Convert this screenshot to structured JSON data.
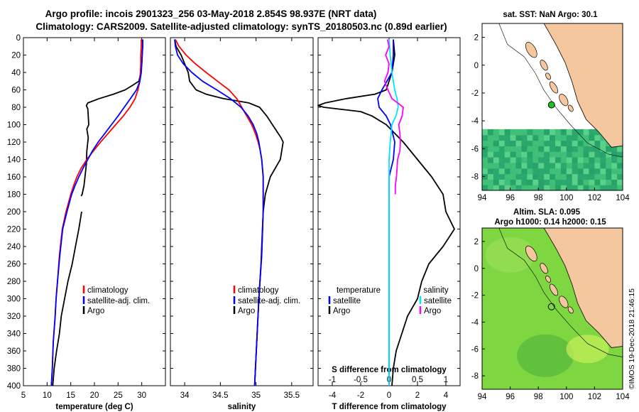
{
  "header": {
    "title_line1": "Argo profile: incois 2901323_256 03-May-2018 2.854S 98.937E (NRT data)",
    "title_line2": "Climatology: CARS2009. Satellite-adjusted climatology: synTS_20180503.nc (0.89d earlier)"
  },
  "colors": {
    "climatology": "#ff0000",
    "satellite": "#0000ff",
    "argo": "#000000",
    "sal_diff_sat": "#00e5ff",
    "sal_diff_argo": "#ff00ff",
    "land": "#f5c79e",
    "ocean_sst": "#2fb868",
    "ocean_sla": "#7ed640"
  },
  "chart_data": [
    {
      "type": "line",
      "title": "",
      "xlabel": "temperature (deg C)",
      "ylabel": "",
      "xlim": [
        5,
        35
      ],
      "ylim": [
        400,
        0
      ],
      "xticks": [
        "5",
        "10",
        "15",
        "20",
        "25",
        "30"
      ],
      "yticks": [
        "0",
        "20",
        "40",
        "60",
        "80",
        "100",
        "120",
        "140",
        "160",
        "180",
        "200",
        "220",
        "240",
        "260",
        "280",
        "300",
        "320",
        "340",
        "360",
        "380",
        "400"
      ],
      "legend": [
        "climatology",
        "satellite-adj. clim.",
        "Argo"
      ],
      "series": [
        {
          "name": "climatology",
          "depth": [
            2,
            10,
            20,
            30,
            40,
            50,
            60,
            70,
            80,
            90,
            100,
            110,
            120,
            130,
            140,
            150,
            160,
            170,
            180,
            200,
            220,
            250,
            280,
            300,
            320,
            350,
            380,
            400
          ],
          "values": [
            29.9,
            29.9,
            29.8,
            29.8,
            29.7,
            29.6,
            29.2,
            28.6,
            27.5,
            26.1,
            24.5,
            22.9,
            21.3,
            19.8,
            18.4,
            17.2,
            16.3,
            15.6,
            15.0,
            14.0,
            13.2,
            12.6,
            12.2,
            11.9,
            11.7,
            11.3,
            11.1,
            10.9
          ]
        },
        {
          "name": "satellite-adj. clim.",
          "depth": [
            2,
            10,
            20,
            30,
            40,
            50,
            60,
            70,
            80,
            90,
            100,
            110,
            120,
            130,
            140,
            150,
            160,
            170,
            180,
            200,
            220,
            250,
            280,
            300,
            320,
            350,
            380,
            400
          ],
          "values": [
            30.2,
            30.2,
            30.1,
            30.0,
            29.9,
            29.6,
            28.9,
            27.6,
            26.3,
            25.0,
            23.6,
            22.2,
            20.8,
            19.6,
            18.6,
            17.6,
            16.7,
            15.9,
            15.2,
            14.2,
            13.3,
            12.7,
            12.2,
            11.9,
            11.7,
            11.3,
            11.1,
            10.9
          ]
        },
        {
          "name": "Argo",
          "depth": [
            2,
            10,
            20,
            30,
            40,
            50,
            55,
            60,
            65,
            70,
            75,
            78,
            82,
            90,
            100,
            105,
            115,
            130,
            145,
            160,
            170,
            180,
            182
          ],
          "values": [
            30.2,
            30.2,
            30.1,
            30.0,
            29.8,
            29.4,
            28.0,
            26.5,
            24.0,
            21.0,
            18.6,
            18.3,
            18.6,
            18.7,
            18.8,
            18.4,
            18.7,
            18.4,
            18.3,
            18.0,
            17.8,
            17.4,
            17.2
          ]
        },
        {
          "name": "Argo-deep",
          "depth": [
            200,
            210,
            220,
            240,
            260,
            280,
            300,
            320,
            340,
            360,
            380,
            400
          ],
          "values": [
            17.3,
            17.0,
            16.7,
            16.0,
            15.3,
            14.4,
            13.7,
            13.0,
            12.6,
            12.0,
            11.5,
            11.2
          ]
        }
      ]
    },
    {
      "type": "line",
      "title": "",
      "xlabel": "salinity",
      "ylabel": "",
      "xlim": [
        33.8,
        35.8
      ],
      "ylim": [
        400,
        0
      ],
      "xticks": [
        "34",
        "34.5",
        "35",
        "35.5"
      ],
      "legend": [
        "climatology",
        "satellite-adj. clim.",
        "Argo"
      ],
      "series": [
        {
          "name": "climatology",
          "depth": [
            2,
            10,
            20,
            30,
            40,
            50,
            60,
            70,
            80,
            90,
            100,
            110,
            120,
            130,
            140,
            160,
            180,
            200,
            250,
            300,
            350,
            400
          ],
          "values": [
            33.87,
            33.92,
            34.02,
            34.15,
            34.3,
            34.46,
            34.62,
            34.73,
            34.8,
            34.87,
            34.94,
            34.99,
            35.03,
            35.06,
            35.08,
            35.1,
            35.1,
            35.1,
            35.08,
            35.04,
            35.01,
            34.98
          ]
        },
        {
          "name": "satellite-adj. clim.",
          "depth": [
            2,
            10,
            20,
            30,
            40,
            50,
            60,
            70,
            80,
            90,
            100,
            110,
            120,
            130,
            140,
            160,
            180,
            200,
            250,
            300,
            350,
            400
          ],
          "values": [
            33.86,
            33.87,
            33.9,
            33.98,
            34.1,
            34.25,
            34.45,
            34.64,
            34.79,
            34.89,
            34.96,
            35.01,
            35.04,
            35.06,
            35.08,
            35.1,
            35.1,
            35.1,
            35.08,
            35.04,
            35.01,
            34.98
          ]
        },
        {
          "name": "Argo",
          "depth": [
            2,
            10,
            20,
            30,
            40,
            50,
            60,
            65,
            70,
            75,
            80,
            90,
            100,
            110,
            115,
            120,
            140,
            160,
            180,
            200,
            220,
            260,
            300,
            350,
            400
          ],
          "values": [
            33.86,
            33.88,
            33.95,
            34.0,
            34.05,
            34.07,
            34.16,
            34.3,
            34.54,
            34.9,
            35.05,
            35.15,
            35.23,
            35.31,
            35.35,
            35.38,
            35.34,
            35.2,
            35.13,
            35.1,
            35.09,
            35.07,
            35.04,
            35.01,
            34.98
          ]
        }
      ]
    },
    {
      "type": "line",
      "title": "",
      "xlabel": "T difference from climatology",
      "xlabel2": "S difference from climatology",
      "xlim": [
        -5,
        5
      ],
      "ylim": [
        400,
        0
      ],
      "xticks": [
        "-4",
        "-2",
        "0",
        "2",
        "4"
      ],
      "xticks_top": [
        "-1",
        "-0.5",
        "0",
        "0.5",
        "1"
      ],
      "legend_left_title": "temperature",
      "legend_right_title": "salinity",
      "legend_left": [
        "satellite",
        "Argo"
      ],
      "legend_right": [
        "satellite",
        "Argo"
      ],
      "series": [
        {
          "name": "T satellite",
          "depth": [
            2,
            20,
            40,
            60,
            70,
            80,
            90,
            100,
            120,
            140,
            160,
            200,
            250,
            300,
            350,
            400
          ],
          "values": [
            0.3,
            0.3,
            0.2,
            -0.5,
            -0.8,
            -0.7,
            -0.2,
            0.1,
            0.4,
            0.3,
            0.0,
            0.0,
            0.0,
            0.0,
            0.0,
            0.0
          ]
        },
        {
          "name": "T Argo",
          "depth": [
            2,
            20,
            40,
            60,
            65,
            70,
            75,
            78,
            80,
            85,
            90,
            100,
            120,
            140,
            160,
            180,
            200,
            220,
            240,
            260,
            280,
            300,
            320,
            340,
            360,
            380,
            400
          ],
          "values": [
            0.3,
            0.4,
            0.2,
            -0.2,
            -1.0,
            -3.0,
            -4.5,
            -5.0,
            -4.6,
            -2.0,
            -1.2,
            -0.2,
            1.0,
            2.0,
            3.0,
            3.8,
            4.0,
            4.6,
            3.8,
            2.8,
            2.3,
            2.0,
            1.3,
            0.9,
            0.5,
            0.3,
            0.2
          ]
        },
        {
          "name": "S satellite",
          "depth": [
            2,
            20,
            40,
            60,
            70,
            80,
            90,
            100,
            120,
            140,
            160,
            200,
            250,
            300,
            350,
            400
          ],
          "values": [
            0.0,
            0.02,
            0.05,
            0.1,
            0.14,
            0.16,
            0.12,
            0.05,
            0.02,
            0.0,
            0.0,
            0.0,
            0.0,
            0.0,
            0.0,
            0.0
          ]
        },
        {
          "name": "S Argo",
          "depth": [
            2,
            10,
            20,
            30,
            40,
            50,
            60,
            70,
            80,
            90,
            100,
            110,
            120,
            130,
            140,
            150,
            160,
            170,
            180
          ],
          "values": [
            -0.03,
            0.0,
            -0.06,
            0.0,
            -0.02,
            -0.08,
            -0.02,
            0.05,
            0.25,
            0.23,
            0.17,
            0.19,
            0.2,
            0.19,
            0.15,
            0.14,
            0.13,
            0.11,
            0.11
          ]
        }
      ]
    },
    {
      "type": "heatmap",
      "title": "sat. SST: NaN Argo: 30.1",
      "xlim": [
        94,
        104
      ],
      "ylim": [
        -9,
        3
      ],
      "xticks": [
        "94",
        "96",
        "98",
        "100",
        "102",
        "104"
      ],
      "yticks": [
        "2",
        "0",
        "-2",
        "-4",
        "-6",
        "-8"
      ],
      "argo_position": {
        "lon": 98.937,
        "lat": -2.854
      }
    },
    {
      "type": "heatmap",
      "title": "Altim. SLA: 0.095",
      "subtitle": "Argo h1000: 0.14 h2000: 0.15",
      "xlim": [
        94,
        104
      ],
      "ylim": [
        -9,
        3
      ],
      "xticks": [
        "94",
        "96",
        "98",
        "100",
        "102",
        "104"
      ],
      "yticks": [
        "2",
        "0",
        "-2",
        "-4",
        "-6",
        "-8"
      ],
      "argo_position": {
        "lon": 98.937,
        "lat": -2.854
      }
    }
  ],
  "credit": "©IMOS 19-Dec-2018 21:46:15"
}
